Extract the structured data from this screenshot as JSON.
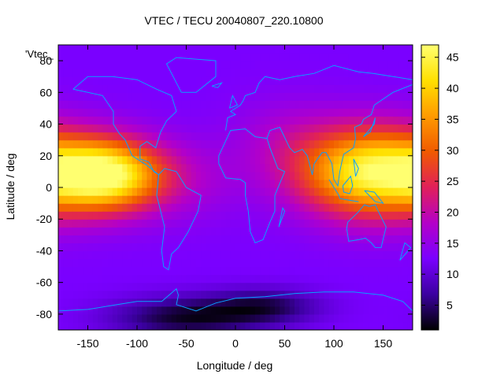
{
  "chart_data": {
    "type": "heatmap",
    "title": "VTEC / TECU 20040807_220.10800",
    "xlabel": "Longitude / deg",
    "ylabel": "Latitude / deg",
    "key_label": "'Vtec_",
    "xlim": [
      -180,
      180
    ],
    "ylim": [
      -90,
      90
    ],
    "x_ticks": [
      -150,
      -100,
      -50,
      0,
      50,
      100,
      150
    ],
    "y_ticks": [
      -80,
      -60,
      -40,
      -20,
      0,
      20,
      40,
      60,
      80
    ],
    "colorbar": {
      "range": [
        1,
        47
      ],
      "ticks": [
        5,
        10,
        15,
        20,
        25,
        30,
        35,
        40,
        45
      ],
      "palette": [
        "#000000",
        "#3b00a0",
        "#7a00ff",
        "#b400c8",
        "#e0205a",
        "#f05a00",
        "#ff9a00",
        "#ffe000",
        "#ffff70"
      ]
    },
    "grid": false,
    "coastline_color": "#0aa0ff",
    "field_regions": [
      {
        "lon_center": 140,
        "lat_center": 10,
        "lon_halfwidth": 80,
        "lat_halfwidth": 30,
        "peak": 33
      },
      {
        "lon_center": 230,
        "lat_center": 8,
        "lon_halfwidth": 60,
        "lat_halfwidth": 24,
        "peak": 32
      },
      {
        "lon_center": 50,
        "lat_center": 30,
        "lon_halfwidth": 60,
        "lat_halfwidth": 30,
        "peak": 4
      },
      {
        "lon_center": -50,
        "lat_center": 5,
        "lon_halfwidth": 60,
        "lat_halfwidth": 28,
        "peak": 4
      },
      {
        "lon_center": -50,
        "lat_center": -82,
        "lon_halfwidth": 80,
        "lat_halfwidth": 14,
        "peak": -10
      },
      {
        "lon_center": 30,
        "lat_center": -75,
        "lon_halfwidth": 60,
        "lat_halfwidth": 12,
        "peak": -8
      }
    ],
    "background_level": 12.5
  }
}
